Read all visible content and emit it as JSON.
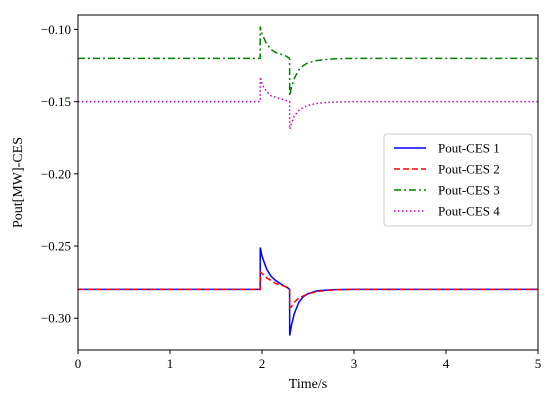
{
  "chart_data": {
    "type": "line",
    "title": "",
    "xlabel": "Time/s",
    "ylabel": "Pout[MW]-CES",
    "xlim": [
      0,
      5
    ],
    "ylim": [
      -0.322,
      -0.09
    ],
    "xticks": [
      0,
      1,
      2,
      3,
      4,
      5
    ],
    "yticks": [
      -0.1,
      -0.15,
      -0.2,
      -0.25,
      -0.3
    ],
    "xtick_labels": [
      "0",
      "1",
      "2",
      "3",
      "4",
      "5"
    ],
    "ytick_labels": [
      "−0.10",
      "−0.15",
      "−0.20",
      "−0.25",
      "−0.30"
    ],
    "grid": false,
    "legend_position": "center-right",
    "series": [
      {
        "name": "Pout-CES 1",
        "color": "#0000ff",
        "dash": "solid",
        "x": [
          0,
          1.98,
          1.981,
          2.0,
          2.05,
          2.1,
          2.15,
          2.2,
          2.25,
          2.28,
          2.3,
          2.301,
          2.32,
          2.35,
          2.4,
          2.45,
          2.5,
          2.6,
          2.7,
          2.8,
          3.0,
          5.0
        ],
        "y": [
          -0.28,
          -0.28,
          -0.251,
          -0.257,
          -0.266,
          -0.271,
          -0.274,
          -0.276,
          -0.278,
          -0.279,
          -0.28,
          -0.312,
          -0.305,
          -0.297,
          -0.289,
          -0.285,
          -0.283,
          -0.281,
          -0.2805,
          -0.2802,
          -0.28,
          -0.28
        ]
      },
      {
        "name": "Pout-CES 2",
        "color": "#ff0000",
        "dash": "dashed",
        "x": [
          0,
          1.98,
          1.981,
          2.0,
          2.05,
          2.1,
          2.15,
          2.2,
          2.25,
          2.3,
          2.301,
          2.32,
          2.35,
          2.4,
          2.5,
          2.6,
          2.7,
          2.8,
          3.0,
          5.0
        ],
        "y": [
          -0.28,
          -0.28,
          -0.268,
          -0.269,
          -0.272,
          -0.274,
          -0.276,
          -0.277,
          -0.278,
          -0.279,
          -0.293,
          -0.292,
          -0.289,
          -0.286,
          -0.283,
          -0.2815,
          -0.2808,
          -0.2803,
          -0.28,
          -0.28
        ]
      },
      {
        "name": "Pout-CES 3",
        "color": "#008000",
        "dash": "dashdot",
        "x": [
          0,
          1.98,
          1.981,
          2.0,
          2.05,
          2.1,
          2.15,
          2.2,
          2.25,
          2.3,
          2.301,
          2.32,
          2.35,
          2.4,
          2.45,
          2.5,
          2.6,
          2.7,
          2.8,
          3.0,
          5.0
        ],
        "y": [
          -0.12,
          -0.12,
          -0.098,
          -0.103,
          -0.11,
          -0.114,
          -0.116,
          -0.117,
          -0.118,
          -0.12,
          -0.146,
          -0.14,
          -0.134,
          -0.128,
          -0.125,
          -0.123,
          -0.1215,
          -0.1208,
          -0.1203,
          -0.12,
          -0.12
        ]
      },
      {
        "name": "Pout-CES 4",
        "color": "#bf00bf",
        "dash": "dotted",
        "x": [
          0,
          1.98,
          1.981,
          2.0,
          2.05,
          2.1,
          2.15,
          2.2,
          2.25,
          2.3,
          2.301,
          2.32,
          2.35,
          2.4,
          2.45,
          2.5,
          2.6,
          2.7,
          2.8,
          3.0,
          5.0
        ],
        "y": [
          -0.15,
          -0.15,
          -0.133,
          -0.138,
          -0.143,
          -0.146,
          -0.147,
          -0.148,
          -0.149,
          -0.15,
          -0.169,
          -0.165,
          -0.16,
          -0.156,
          -0.154,
          -0.1525,
          -0.1512,
          -0.1506,
          -0.1503,
          -0.15,
          -0.15
        ]
      }
    ]
  }
}
